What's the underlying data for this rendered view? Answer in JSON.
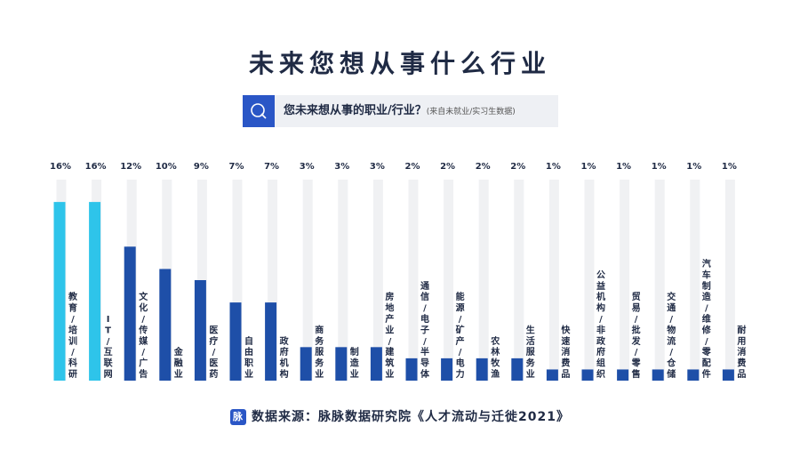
{
  "title": "未来您想从事什么行业",
  "question": {
    "text": "您未来想从事的职业/行业？",
    "note": "(来自未就业/实习生数据)"
  },
  "footer": {
    "logo_char": "脉",
    "text": "数据来源：脉脉数据研究院《人才流动与迁徙2021》"
  },
  "colors": {
    "highlight": "#2ec4ea",
    "primary": "#1e4fa8",
    "track": "#f0f1f3"
  },
  "chart_data": {
    "type": "bar",
    "orientation": "vertical",
    "categories": [
      "教育/培训/科研",
      "IT/互联网",
      "文化/传媒/广告",
      "金融业",
      "医疗/医药",
      "自由职业",
      "政府机构",
      "商务服务业",
      "制造业",
      "房地产业/建筑业",
      "通信/电子/半导体",
      "能源/矿产/电力",
      "农林牧渔",
      "生活服务业",
      "快速消费品",
      "公益机构/非政府组织",
      "贸易/批发/零售",
      "交通/物流/仓储",
      "汽车制造/维修/零配件",
      "耐用消费品"
    ],
    "value_labels": [
      "16%",
      "16%",
      "12%",
      "10%",
      "9%",
      "7%",
      "7%",
      "3%",
      "3%",
      "3%",
      "2%",
      "2%",
      "2%",
      "2%",
      "1%",
      "1%",
      "1%",
      "1%",
      "1%",
      "1%"
    ],
    "values": [
      16,
      16,
      12,
      10,
      9,
      7,
      7,
      3,
      3,
      3,
      2,
      2,
      2,
      2,
      1,
      1,
      1,
      1,
      1,
      1
    ],
    "highlight_count": 2,
    "ymax": 18
  }
}
